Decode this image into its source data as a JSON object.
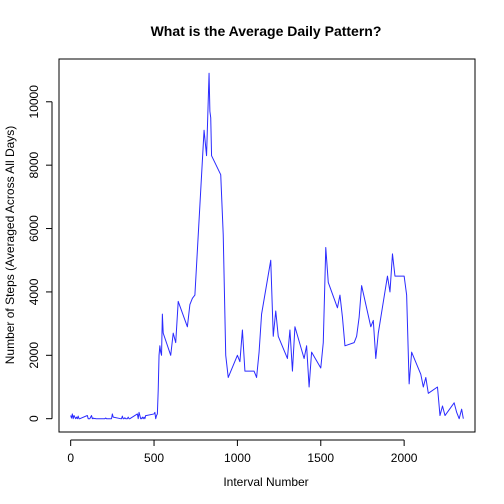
{
  "chart_data": {
    "type": "line",
    "title": "What is the Average Daily Pattern?",
    "xlabel": "Interval Number",
    "ylabel": "Number of Steps (Averaged Across All Days)",
    "xlim": [
      -70,
      2425
    ],
    "ylim": [
      -420,
      11350
    ],
    "x_ticks": [
      0,
      500,
      1000,
      1500,
      2000
    ],
    "y_ticks": [
      0,
      2000,
      4000,
      6000,
      8000,
      10000
    ],
    "grid": false,
    "legend": "none",
    "line_color": "#2b2bff",
    "series": [
      {
        "x": [
          0,
          5,
          10,
          15,
          20,
          25,
          30,
          35,
          40,
          45,
          50,
          55,
          100,
          105,
          110,
          115,
          120,
          125,
          130,
          135,
          140,
          145,
          150,
          155,
          200,
          205,
          210,
          215,
          220,
          225,
          230,
          235,
          240,
          245,
          250,
          255,
          300,
          305,
          310,
          315,
          320,
          325,
          330,
          335,
          340,
          345,
          350,
          355,
          400,
          405,
          410,
          415,
          420,
          425,
          430,
          435,
          440,
          445,
          450,
          455,
          500,
          505,
          510,
          515,
          520,
          525,
          530,
          535,
          540,
          545,
          550,
          555,
          600,
          615,
          630,
          645,
          700,
          715,
          730,
          745,
          800,
          815,
          830,
          835,
          840,
          845,
          900,
          915,
          930,
          945,
          1000,
          1015,
          1030,
          1045,
          1100,
          1115,
          1130,
          1145,
          1200,
          1215,
          1230,
          1245,
          1300,
          1315,
          1330,
          1345,
          1400,
          1415,
          1430,
          1445,
          1500,
          1515,
          1530,
          1545,
          1600,
          1615,
          1630,
          1645,
          1700,
          1715,
          1730,
          1745,
          1800,
          1815,
          1830,
          1845,
          1900,
          1915,
          1930,
          1945,
          2000,
          2015,
          2030,
          2045,
          2100,
          2115,
          2130,
          2145,
          2200,
          2215,
          2230,
          2245,
          2300,
          2315,
          2330,
          2345,
          2355
        ],
        "y": [
          100,
          20,
          150,
          0,
          100,
          50,
          0,
          50,
          0,
          80,
          0,
          0,
          100,
          0,
          0,
          0,
          50,
          100,
          0,
          20,
          0,
          10,
          0,
          0,
          0,
          0,
          20,
          0,
          0,
          0,
          0,
          0,
          0,
          0,
          150,
          50,
          0,
          0,
          80,
          0,
          0,
          30,
          0,
          0,
          0,
          50,
          0,
          0,
          150,
          0,
          200,
          100,
          0,
          0,
          50,
          0,
          50,
          0,
          100,
          100,
          150,
          200,
          0,
          100,
          150,
          900,
          2000,
          2300,
          2100,
          2000,
          3300,
          2700,
          2000,
          2700,
          2400,
          3700,
          2900,
          3600,
          3800,
          3900,
          9100,
          8300,
          10900,
          9700,
          9500,
          8300,
          7700,
          5800,
          2000,
          1300,
          2000,
          1800,
          2800,
          1500,
          1500,
          1300,
          2100,
          3300,
          5000,
          2600,
          3400,
          2600,
          1900,
          2800,
          1500,
          2900,
          1900,
          2300,
          1000,
          2100,
          1600,
          2400,
          5400,
          4300,
          3500,
          3900,
          3200,
          2300,
          2400,
          2600,
          3200,
          4200,
          2900,
          3100,
          1900,
          2700,
          4500,
          4000,
          5200,
          4500,
          4500,
          3900,
          1100,
          2100,
          1400,
          1000,
          1300,
          800,
          1000,
          100,
          400,
          100,
          500,
          200,
          0,
          300,
          0
        ]
      }
    ]
  }
}
